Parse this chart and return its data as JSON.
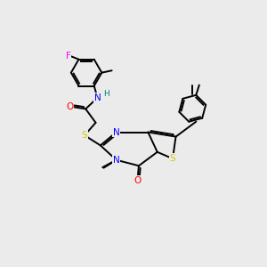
{
  "background_color": "#ebebeb",
  "bond_color": "#000000",
  "atom_colors": {
    "N": "#0000ff",
    "O": "#ff0000",
    "S": "#cccc00",
    "F": "#ff00ff",
    "H": "#008080"
  },
  "lw": 1.4
}
